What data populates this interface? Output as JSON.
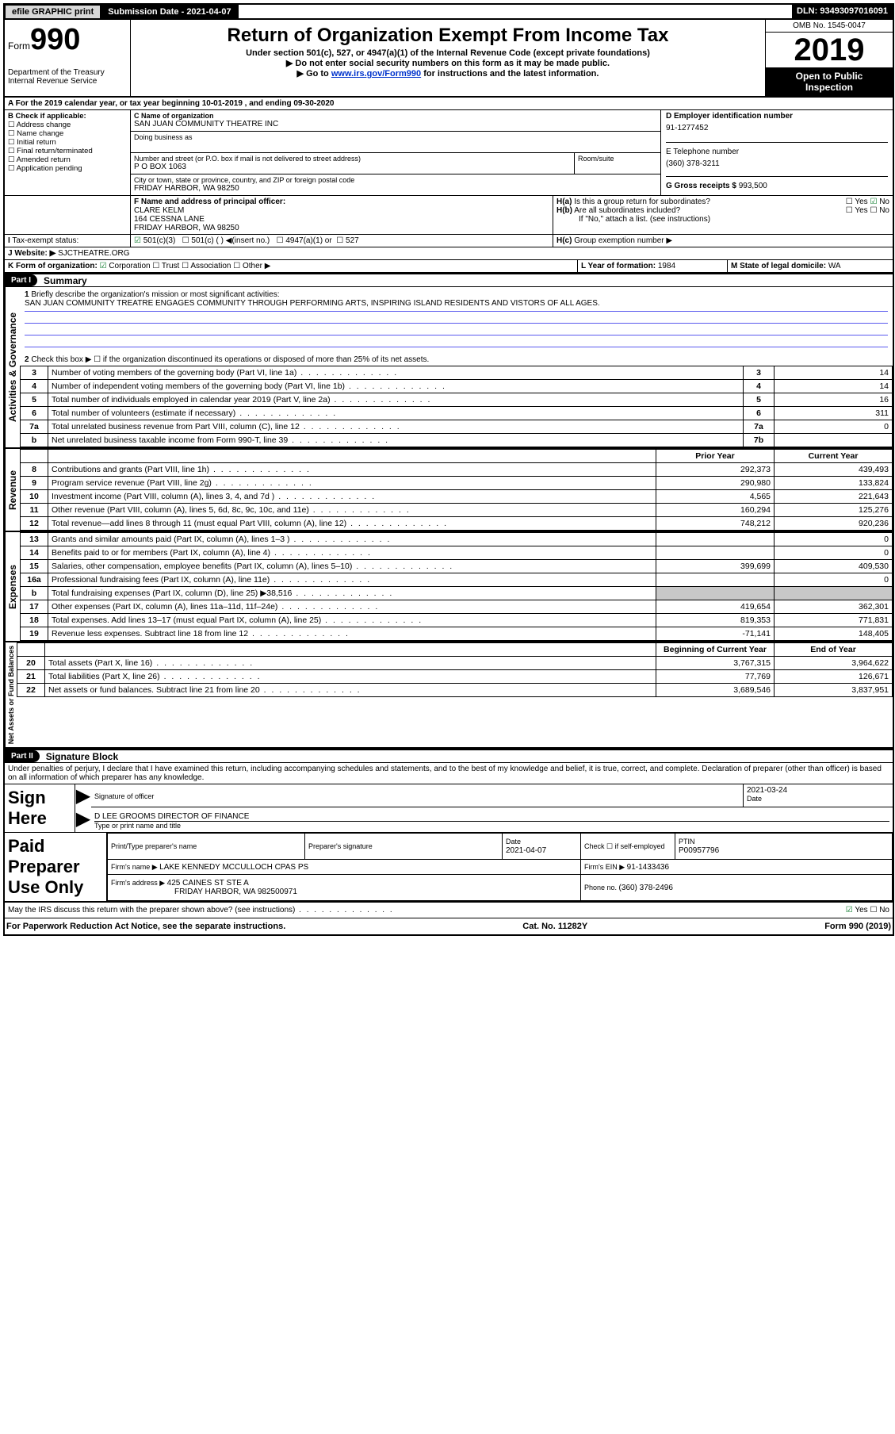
{
  "top": {
    "efile": "efile GRAPHIC print",
    "submission_label": "Submission Date - 2021-04-07",
    "dln": "DLN: 93493097016091"
  },
  "header": {
    "form_prefix": "Form",
    "form_num": "990",
    "dept": "Department of the Treasury",
    "irs": "Internal Revenue Service",
    "title": "Return of Organization Exempt From Income Tax",
    "sub1": "Under section 501(c), 527, or 4947(a)(1) of the Internal Revenue Code (except private foundations)",
    "sub2": "Do not enter social security numbers on this form as it may be made public.",
    "sub3_pre": "Go to ",
    "sub3_link": "www.irs.gov/Form990",
    "sub3_post": " for instructions and the latest information.",
    "omb": "OMB No. 1545-0047",
    "year": "2019",
    "inspect1": "Open to Public",
    "inspect2": "Inspection"
  },
  "A": "For the 2019 calendar year, or tax year beginning 10-01-2019    , and ending 09-30-2020",
  "B": {
    "label": "B Check if applicable:",
    "opts": [
      "Address change",
      "Name change",
      "Initial return",
      "Final return/terminated",
      "Amended return",
      "Application pending"
    ]
  },
  "C": {
    "name_label": "C Name of organization",
    "name": "SAN JUAN COMMUNITY THEATRE INC",
    "dba_label": "Doing business as",
    "addr_label": "Number and street (or P.O. box if mail is not delivered to street address)",
    "room_label": "Room/suite",
    "addr": "P O BOX 1063",
    "city_label": "City or town, state or province, country, and ZIP or foreign postal code",
    "city": "FRIDAY HARBOR, WA  98250"
  },
  "D": {
    "label": "D Employer identification number",
    "ein": "91-1277452"
  },
  "E": {
    "label": "E Telephone number",
    "phone": "(360) 378-3211"
  },
  "G": {
    "label": "G Gross receipts $ ",
    "amt": "993,500"
  },
  "F": {
    "label": "F  Name and address of principal officer:",
    "name": "CLARE KELM",
    "addr1": "164 CESSNA LANE",
    "addr2": "FRIDAY HARBOR, WA  98250"
  },
  "H": {
    "a": "Is this a group return for subordinates?",
    "b": "Are all subordinates included?",
    "b2": "If \"No,\" attach a list. (see instructions)",
    "c": "Group exemption number ▶"
  },
  "I": {
    "label": "Tax-exempt status:",
    "opts": [
      "501(c)(3)",
      "501(c) (   ) ◀(insert no.)",
      "4947(a)(1) or",
      "527"
    ]
  },
  "J": {
    "label": "Website: ▶",
    "val": "SJCTHEATRE.ORG"
  },
  "K": {
    "label": "K Form of organization:",
    "opts": [
      "Corporation",
      "Trust",
      "Association",
      "Other ▶"
    ]
  },
  "L": {
    "label": "L Year of formation: ",
    "val": "1984"
  },
  "M": {
    "label": "M State of legal domicile: ",
    "val": "WA"
  },
  "part1": {
    "bar": "Part I",
    "title": "Summary",
    "q1": "Briefly describe the organization's mission or most significant activities:",
    "mission": "SAN JUAN COMMUNITY TREATRE ENGAGES COMMUNITY THROUGH PERFORMING ARTS, INSPIRING ISLAND RESIDENTS AND VISTORS OF ALL AGES.",
    "q2": "Check this box ▶ ☐  if the organization discontinued its operations or disposed of more than 25% of its net assets.",
    "lines_gov": [
      {
        "n": "3",
        "t": "Number of voting members of the governing body (Part VI, line 1a)",
        "c": "3",
        "v": "14"
      },
      {
        "n": "4",
        "t": "Number of independent voting members of the governing body (Part VI, line 1b)",
        "c": "4",
        "v": "14"
      },
      {
        "n": "5",
        "t": "Total number of individuals employed in calendar year 2019 (Part V, line 2a)",
        "c": "5",
        "v": "16"
      },
      {
        "n": "6",
        "t": "Total number of volunteers (estimate if necessary)",
        "c": "6",
        "v": "311"
      },
      {
        "n": "7a",
        "t": "Total unrelated business revenue from Part VIII, column (C), line 12",
        "c": "7a",
        "v": "0"
      },
      {
        "n": "b",
        "t": "Net unrelated business taxable income from Form 990-T, line 39",
        "c": "7b",
        "v": ""
      }
    ],
    "prior": "Prior Year",
    "current": "Current Year",
    "revenue": [
      {
        "n": "8",
        "t": "Contributions and grants (Part VIII, line 1h)",
        "p": "292,373",
        "c": "439,493"
      },
      {
        "n": "9",
        "t": "Program service revenue (Part VIII, line 2g)",
        "p": "290,980",
        "c": "133,824"
      },
      {
        "n": "10",
        "t": "Investment income (Part VIII, column (A), lines 3, 4, and 7d )",
        "p": "4,565",
        "c": "221,643"
      },
      {
        "n": "11",
        "t": "Other revenue (Part VIII, column (A), lines 5, 6d, 8c, 9c, 10c, and 11e)",
        "p": "160,294",
        "c": "125,276"
      },
      {
        "n": "12",
        "t": "Total revenue—add lines 8 through 11 (must equal Part VIII, column (A), line 12)",
        "p": "748,212",
        "c": "920,236"
      }
    ],
    "expenses": [
      {
        "n": "13",
        "t": "Grants and similar amounts paid (Part IX, column (A), lines 1–3 )",
        "p": "",
        "c": "0"
      },
      {
        "n": "14",
        "t": "Benefits paid to or for members (Part IX, column (A), line 4)",
        "p": "",
        "c": "0"
      },
      {
        "n": "15",
        "t": "Salaries, other compensation, employee benefits (Part IX, column (A), lines 5–10)",
        "p": "399,699",
        "c": "409,530"
      },
      {
        "n": "16a",
        "t": "Professional fundraising fees (Part IX, column (A), line 11e)",
        "p": "",
        "c": "0"
      },
      {
        "n": "b",
        "t": "Total fundraising expenses (Part IX, column (D), line 25) ▶38,516",
        "p": "GREY",
        "c": "GREY"
      },
      {
        "n": "17",
        "t": "Other expenses (Part IX, column (A), lines 11a–11d, 11f–24e)",
        "p": "419,654",
        "c": "362,301"
      },
      {
        "n": "18",
        "t": "Total expenses. Add lines 13–17 (must equal Part IX, column (A), line 25)",
        "p": "819,353",
        "c": "771,831"
      },
      {
        "n": "19",
        "t": "Revenue less expenses. Subtract line 18 from line 12",
        "p": "-71,141",
        "c": "148,405"
      }
    ],
    "begin": "Beginning of Current Year",
    "end": "End of Year",
    "net": [
      {
        "n": "20",
        "t": "Total assets (Part X, line 16)",
        "p": "3,767,315",
        "c": "3,964,622"
      },
      {
        "n": "21",
        "t": "Total liabilities (Part X, line 26)",
        "p": "77,769",
        "c": "126,671"
      },
      {
        "n": "22",
        "t": "Net assets or fund balances. Subtract line 21 from line 20",
        "p": "3,689,546",
        "c": "3,837,951"
      }
    ]
  },
  "part2": {
    "bar": "Part II",
    "title": "Signature Block",
    "decl": "Under penalties of perjury, I declare that I have examined this return, including accompanying schedules and statements, and to the best of my knowledge and belief, it is true, correct, and complete. Declaration of preparer (other than officer) is based on all information of which preparer has any knowledge.",
    "sign_here": "Sign Here",
    "sig_officer": "Signature of officer",
    "sig_date": "2021-03-24",
    "date_lbl": "Date",
    "officer_name": "D LEE GROOMS  DIRECTOR OF FINANCE",
    "officer_lbl": "Type or print name and title",
    "paid": "Paid Preparer Use Only",
    "prep_name_lbl": "Print/Type preparer's name",
    "prep_sig_lbl": "Preparer's signature",
    "prep_date_lbl": "Date",
    "prep_date": "2021-04-07",
    "self_emp": "Check ☐ if self-employed",
    "ptin_lbl": "PTIN",
    "ptin": "P00957796",
    "firm_name_lbl": "Firm's name    ▶ ",
    "firm_name": "LAKE KENNEDY MCCULLOCH CPAS PS",
    "firm_ein_lbl": "Firm's EIN ▶ ",
    "firm_ein": "91-1433436",
    "firm_addr_lbl": "Firm's address ▶ ",
    "firm_addr1": "425 CAINES ST STE A",
    "firm_addr2": "FRIDAY HARBOR, WA  982500971",
    "firm_phone_lbl": "Phone no. ",
    "firm_phone": "(360) 378-2496",
    "discuss": "May the IRS discuss this return with the preparer shown above? (see instructions)"
  },
  "footer": {
    "left": "For Paperwork Reduction Act Notice, see the separate instructions.",
    "mid": "Cat. No. 11282Y",
    "right": "Form 990 (2019)"
  },
  "sidelabels": {
    "gov": "Activities & Governance",
    "rev": "Revenue",
    "exp": "Expenses",
    "net": "Net Assets or Fund Balances"
  }
}
